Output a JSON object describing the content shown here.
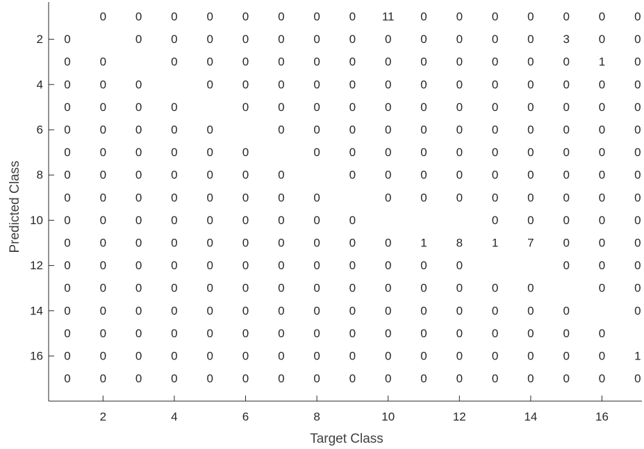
{
  "chart_data": {
    "type": "heatmap",
    "title": "",
    "xlabel": "Target Class",
    "ylabel": "Predicted Class",
    "x_range": [
      1,
      17
    ],
    "y_range": [
      1,
      17
    ],
    "x_ticks": [
      2,
      4,
      6,
      8,
      10,
      12,
      14,
      16
    ],
    "y_ticks": [
      2,
      4,
      6,
      8,
      10,
      12,
      14,
      16
    ],
    "grid": false,
    "matrix": [
      [
        null,
        0,
        0,
        0,
        0,
        0,
        0,
        0,
        0,
        11,
        0,
        0,
        0,
        0,
        0,
        0,
        0
      ],
      [
        0,
        null,
        0,
        0,
        0,
        0,
        0,
        0,
        0,
        0,
        0,
        0,
        0,
        0,
        3,
        0,
        0
      ],
      [
        0,
        0,
        null,
        0,
        0,
        0,
        0,
        0,
        0,
        0,
        0,
        0,
        0,
        0,
        0,
        1,
        0
      ],
      [
        0,
        0,
        0,
        null,
        0,
        0,
        0,
        0,
        0,
        0,
        0,
        0,
        0,
        0,
        0,
        0,
        0
      ],
      [
        0,
        0,
        0,
        0,
        null,
        0,
        0,
        0,
        0,
        0,
        0,
        0,
        0,
        0,
        0,
        0,
        0
      ],
      [
        0,
        0,
        0,
        0,
        0,
        null,
        0,
        0,
        0,
        0,
        0,
        0,
        0,
        0,
        0,
        0,
        0
      ],
      [
        0,
        0,
        0,
        0,
        0,
        0,
        null,
        0,
        0,
        0,
        0,
        0,
        0,
        0,
        0,
        0,
        0
      ],
      [
        0,
        0,
        0,
        0,
        0,
        0,
        0,
        null,
        0,
        0,
        0,
        0,
        0,
        0,
        0,
        0,
        0
      ],
      [
        0,
        0,
        0,
        0,
        0,
        0,
        0,
        0,
        null,
        0,
        0,
        0,
        0,
        0,
        0,
        0,
        0
      ],
      [
        0,
        0,
        0,
        0,
        0,
        0,
        0,
        0,
        0,
        null,
        null,
        null,
        0,
        0,
        0,
        0,
        0
      ],
      [
        0,
        0,
        0,
        0,
        0,
        0,
        0,
        0,
        0,
        0,
        1,
        8,
        1,
        7,
        0,
        0,
        0
      ],
      [
        0,
        0,
        0,
        0,
        0,
        0,
        0,
        0,
        0,
        0,
        0,
        0,
        null,
        null,
        0,
        0,
        0
      ],
      [
        0,
        0,
        0,
        0,
        0,
        0,
        0,
        0,
        0,
        0,
        0,
        0,
        0,
        0,
        null,
        0,
        0
      ],
      [
        0,
        0,
        0,
        0,
        0,
        0,
        0,
        0,
        0,
        0,
        0,
        0,
        0,
        0,
        0,
        null,
        0
      ],
      [
        0,
        0,
        0,
        0,
        0,
        0,
        0,
        0,
        0,
        0,
        0,
        0,
        0,
        0,
        0,
        0,
        null
      ],
      [
        0,
        0,
        0,
        0,
        0,
        0,
        0,
        0,
        0,
        0,
        0,
        0,
        0,
        0,
        0,
        0,
        1
      ],
      [
        0,
        0,
        0,
        0,
        0,
        0,
        0,
        0,
        0,
        0,
        0,
        0,
        0,
        0,
        0,
        0,
        0
      ]
    ]
  }
}
